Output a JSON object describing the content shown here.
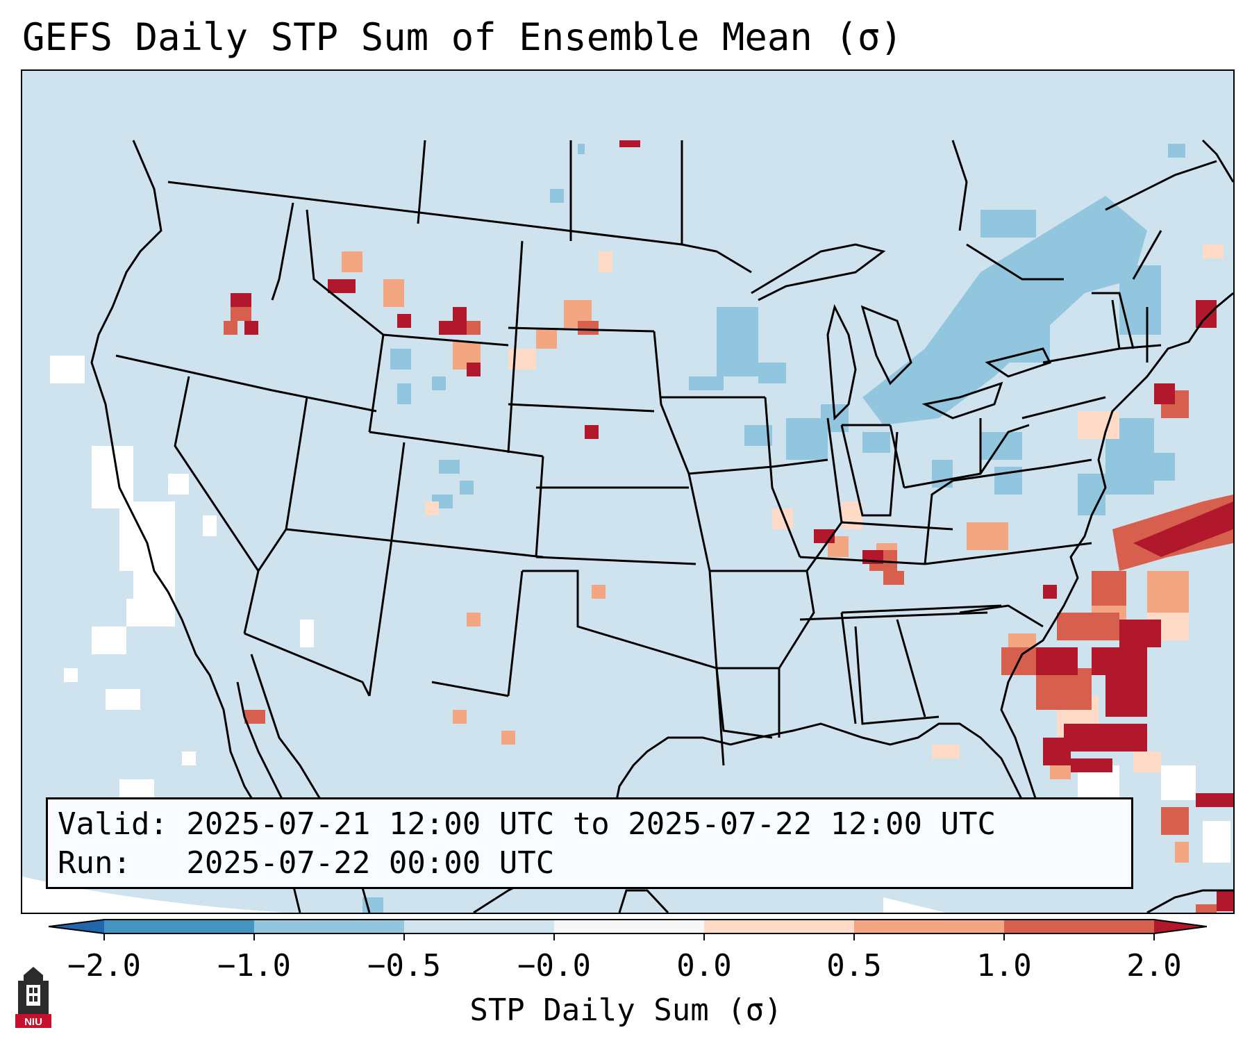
{
  "title": "GEFS Daily STP Sum of Ensemble Mean (σ)",
  "info": {
    "valid_line": "Valid: 2025-07-21 12:00 UTC to 2025-07-22 12:00 UTC",
    "run_line": "Run:   2025-07-22 00:00 UTC"
  },
  "colorbar": {
    "label": "STP Daily Sum (σ)",
    "ticks": [
      "−2.0",
      "−1.0",
      "−0.5",
      "−0.0",
      "0.0",
      "0.5",
      "1.0",
      "2.0"
    ],
    "colors": [
      "#4393c3",
      "#92c5de",
      "#d1e5f0",
      "#f7f7f7",
      "#fddbc7",
      "#f4a582",
      "#d6604d",
      "#b2182b"
    ],
    "under_color": "#2166ac",
    "over_color": "#b2182b"
  },
  "logo": {
    "text": "NIU",
    "icon": "university-tower-icon"
  },
  "map": {
    "background_color": "#d1e5f0",
    "ocean_outside_color": "#ffffff",
    "features": [
      "coastlines",
      "state-borders",
      "country-borders"
    ]
  }
}
